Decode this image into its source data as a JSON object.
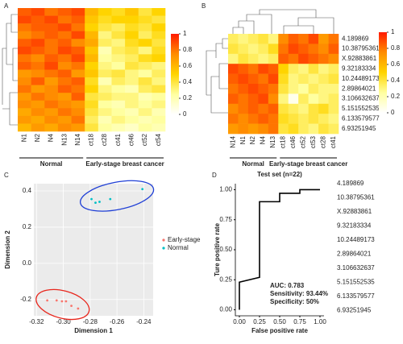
{
  "chart_data": [
    {
      "type": "heatmap",
      "panel": "A",
      "columns": [
        "N1",
        "N2",
        "N4",
        "N13",
        "N14",
        "ct18",
        "ct28",
        "ct41",
        "ct46",
        "ct52",
        "ct54"
      ],
      "group_labels": [
        "Normal",
        "Early-stage breast cancer"
      ],
      "colorscale": [
        "#ffffff",
        "#ffffa0",
        "#ffd400",
        "#ff8c00",
        "#ff1a00"
      ],
      "clim": [
        0,
        1
      ],
      "cticks": [
        0,
        0.2,
        0.4,
        0.6,
        0.8,
        1
      ],
      "values": [
        [
          0.85,
          0.9,
          0.8,
          0.85,
          0.9,
          0.6,
          0.5,
          0.45,
          0.55,
          0.4,
          0.5
        ],
        [
          0.9,
          0.85,
          0.9,
          0.8,
          0.85,
          0.55,
          0.45,
          0.5,
          0.5,
          0.45,
          0.4
        ],
        [
          0.8,
          0.85,
          0.85,
          0.9,
          0.8,
          0.5,
          0.4,
          0.35,
          0.45,
          0.4,
          0.5
        ],
        [
          0.75,
          0.8,
          0.85,
          0.8,
          0.9,
          0.6,
          0.3,
          0.4,
          0.5,
          0.35,
          0.45
        ],
        [
          0.85,
          0.9,
          0.8,
          0.85,
          0.75,
          0.65,
          0.35,
          0.3,
          0.45,
          0.5,
          0.4
        ],
        [
          0.9,
          0.85,
          0.8,
          0.9,
          0.85,
          0.55,
          0.2,
          0.35,
          0.4,
          0.3,
          0.45
        ],
        [
          0.8,
          0.75,
          0.85,
          0.8,
          0.9,
          0.6,
          0.25,
          0.3,
          0.35,
          0.45,
          0.5
        ],
        [
          0.85,
          0.8,
          0.9,
          0.75,
          0.8,
          0.5,
          0.3,
          0.25,
          0.4,
          0.35,
          0.3
        ],
        [
          0.7,
          0.75,
          0.8,
          0.85,
          0.7,
          0.55,
          0.35,
          0.4,
          0.3,
          0.25,
          0.35
        ],
        [
          0.75,
          0.85,
          0.7,
          0.8,
          0.85,
          0.45,
          0.2,
          0.35,
          0.3,
          0.4,
          0.3
        ],
        [
          0.8,
          0.7,
          0.75,
          0.85,
          0.8,
          0.5,
          0.3,
          0.25,
          0.2,
          0.35,
          0.4
        ],
        [
          0.7,
          0.8,
          0.75,
          0.7,
          0.85,
          0.4,
          0.35,
          0.3,
          0.3,
          0.2,
          0.25
        ],
        [
          0.75,
          0.7,
          0.8,
          0.75,
          0.7,
          0.45,
          0.25,
          0.2,
          0.3,
          0.25,
          0.3
        ],
        [
          0.65,
          0.75,
          0.7,
          0.8,
          0.75,
          0.4,
          0.3,
          0.25,
          0.2,
          0.3,
          0.2
        ],
        [
          0.7,
          0.65,
          0.75,
          0.7,
          0.8,
          0.35,
          0.2,
          0.3,
          0.25,
          0.2,
          0.25
        ],
        [
          0.6,
          0.7,
          0.65,
          0.75,
          0.7,
          0.4,
          0.25,
          0.2,
          0.15,
          0.25,
          0.2
        ]
      ]
    },
    {
      "type": "heatmap",
      "panel": "B",
      "columns": [
        "N14",
        "N1",
        "N2",
        "N4",
        "N13",
        "ct18",
        "ct46",
        "ct52",
        "ct53",
        "ct28",
        "ct41"
      ],
      "rows": [
        "4.189869",
        "10.38795361",
        "X.92883861",
        "9.32183334",
        "10.24489173",
        "2.89864021",
        "3.106632637",
        "5.151552535",
        "6.133579577",
        "6.93251945"
      ],
      "group_labels": [
        "Normal",
        "Early-stage breast cancer"
      ],
      "colorscale": [
        "#ffffff",
        "#ffffa0",
        "#ffd400",
        "#ff8c00",
        "#ff1a00"
      ],
      "clim": [
        0,
        1
      ],
      "cticks": [
        0,
        0.2,
        0.4,
        0.6,
        0.8,
        1
      ],
      "values": [
        [
          0.35,
          0.3,
          0.35,
          0.4,
          0.3,
          0.75,
          0.85,
          0.8,
          0.9,
          0.7,
          0.8
        ],
        [
          0.4,
          0.35,
          0.3,
          0.35,
          0.45,
          0.8,
          0.9,
          0.85,
          0.8,
          0.75,
          0.85
        ],
        [
          0.3,
          0.4,
          0.35,
          0.3,
          0.35,
          0.85,
          0.8,
          0.9,
          0.85,
          0.8,
          0.75
        ],
        [
          0.9,
          0.85,
          0.8,
          0.9,
          0.85,
          0.5,
          0.35,
          0.3,
          0.4,
          0.3,
          0.35
        ],
        [
          0.85,
          0.9,
          0.85,
          0.8,
          0.9,
          0.45,
          0.3,
          0.35,
          0.3,
          0.35,
          0.4
        ],
        [
          0.8,
          0.85,
          0.9,
          0.85,
          0.8,
          0.4,
          0.3,
          0.25,
          0.35,
          0.3,
          0.3
        ],
        [
          0.85,
          0.8,
          0.85,
          0.9,
          0.75,
          0.3,
          0.05,
          0.35,
          0.25,
          0.3,
          0.35
        ],
        [
          0.75,
          0.8,
          0.85,
          0.8,
          0.85,
          0.4,
          0.35,
          0.3,
          0.4,
          0.45,
          0.35
        ],
        [
          0.8,
          0.75,
          0.8,
          0.85,
          0.8,
          0.45,
          0.4,
          0.35,
          0.4,
          0.35,
          0.3
        ],
        [
          0.7,
          0.75,
          0.7,
          0.75,
          0.8,
          0.4,
          0.45,
          0.35,
          0.3,
          0.4,
          0.35
        ]
      ]
    },
    {
      "type": "scatter",
      "panel": "C",
      "xlabel": "Dimension 1",
      "ylabel": "Dimension 2",
      "xlim": [
        -0.322,
        -0.233
      ],
      "xticks": [
        -0.32,
        {
          "value": -0.3,
          "label": "-0.30"
        },
        -0.28,
        -0.26,
        -0.24
      ],
      "ylim": [
        -0.29,
        0.44
      ],
      "yticks": [
        -0.2,
        {
          "value": 0,
          "label": "0.0"
        },
        0.2,
        0.4
      ],
      "grid": true,
      "series": [
        {
          "name": "Early-stage",
          "color": "#f8766d",
          "ellipse_color": "#e8261c",
          "x": [
            -0.312,
            -0.305,
            -0.301,
            -0.298,
            -0.294,
            -0.289
          ],
          "y": [
            -0.205,
            -0.205,
            -0.21,
            -0.21,
            -0.235,
            -0.25
          ]
        },
        {
          "name": "Normal",
          "color": "#00bfc4",
          "ellipse_color": "#1f3fd6",
          "x": [
            -0.279,
            -0.276,
            -0.273,
            -0.265,
            -0.241
          ],
          "y": [
            0.355,
            0.335,
            0.34,
            0.355,
            0.41
          ]
        }
      ]
    },
    {
      "type": "line",
      "panel": "D",
      "title": "Test set (n=22)",
      "xlabel": "False positive rate",
      "ylabel": "Ture positive rate",
      "xlim": [
        -0.05,
        1.05
      ],
      "xticks": [
        {
          "value": 0,
          "label": "0.00"
        },
        0.25,
        {
          "value": 0.5,
          "label": "0.50"
        },
        0.75,
        {
          "value": 1,
          "label": "1.00"
        }
      ],
      "ylim": [
        -0.05,
        1.05
      ],
      "yticks": [
        {
          "value": 0,
          "label": "0.00"
        },
        0.25,
        {
          "value": 0.5,
          "label": "0.50"
        },
        0.75,
        {
          "value": 1,
          "label": "1.00"
        }
      ],
      "color": "#000000",
      "x": [
        0,
        0,
        0.25,
        0.25,
        0.5,
        0.5,
        0.75,
        0.75,
        1
      ],
      "y": [
        0,
        0.23,
        0.27,
        0.9,
        0.9,
        0.97,
        0.97,
        1,
        1
      ],
      "annotations": [
        "AUC: 0.783",
        "Sensitivity: 93.44%",
        "Specificity: 50%"
      ],
      "feature_labels": [
        "4.189869",
        "10.38795361",
        "X.92883861",
        "9.32183334",
        "10.24489173",
        "2.89864021",
        "3.106632637",
        "5.151552535",
        "6.133579577",
        "6.93251945"
      ]
    }
  ]
}
